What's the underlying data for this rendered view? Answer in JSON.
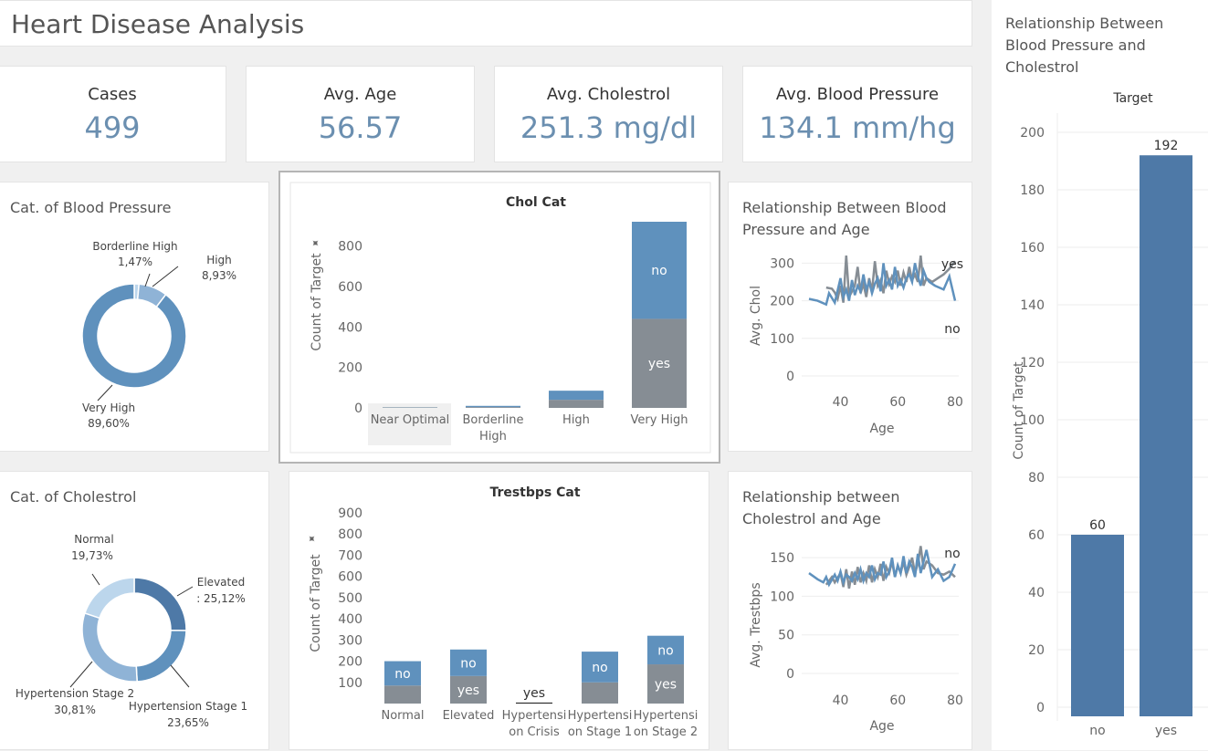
{
  "page": {
    "title": "Heart Disease Analysis"
  },
  "kpis": [
    {
      "label": "Cases",
      "value": "499"
    },
    {
      "label": "Avg. Age",
      "value": "56.57"
    },
    {
      "label": "Avg. Cholestrol",
      "value": "251.3 mg/dl"
    },
    {
      "label": "Avg. Blood Pressure",
      "value": "134.1 mm/hg"
    }
  ],
  "colors": {
    "dark_blue": "#4e79a7",
    "mid_blue": "#5f91bd",
    "light_blue": "#8fb3d6",
    "pale_blue": "#bcd6ec",
    "gray": "#868d94",
    "grid": "#eeeeee"
  },
  "chart_data": [
    {
      "id": "bp_donut",
      "type": "pie",
      "title": "Cat. of Blood Pressure",
      "slices": [
        {
          "name": "Borderline High",
          "label": "1,47%",
          "value": 1.47
        },
        {
          "name": "High",
          "label": "8,93%",
          "value": 8.93
        },
        {
          "name": "Very High",
          "label": "89,60%",
          "value": 89.6
        }
      ]
    },
    {
      "id": "chol_donut",
      "type": "pie",
      "title": "Cat. of Cholestrol",
      "slices": [
        {
          "name": "Elevated",
          "label": ": 25,12%",
          "value": 25.12
        },
        {
          "name": "Hypertension Stage 1",
          "label": "23,65%",
          "value": 23.65
        },
        {
          "name": "Hypertension Stage 2",
          "label": "30,81%",
          "value": 30.81
        },
        {
          "name": "Normal",
          "label": "19,73%",
          "value": 19.73
        }
      ]
    },
    {
      "id": "chol_cat",
      "type": "bar",
      "stacked": true,
      "title": "Chol Cat",
      "ylabel": "Count of Target",
      "yticks": [
        0,
        200,
        400,
        600,
        800
      ],
      "ylim": [
        0,
        920
      ],
      "categories": [
        "Near Optimal",
        "Borderline High",
        "High",
        "Very High"
      ],
      "category_lines": [
        [
          "Near Optimal"
        ],
        [
          "Borderline",
          "High"
        ],
        [
          "High"
        ],
        [
          "Very High"
        ]
      ],
      "series": [
        {
          "name": "yes",
          "values": [
            2,
            4,
            40,
            440
          ]
        },
        {
          "name": "no",
          "values": [
            1,
            6,
            45,
            480
          ]
        }
      ]
    },
    {
      "id": "trestbps_cat",
      "type": "bar",
      "stacked": true,
      "title": "Trestbps Cat",
      "ylabel": "Count of Target",
      "yticks": [
        100,
        200,
        300,
        400,
        500,
        600,
        700,
        800,
        900
      ],
      "ylim": [
        0,
        900
      ],
      "categories": [
        "Normal",
        "Elevated",
        "Hypertension Crisis",
        "Hypertension Stage 1",
        "Hypertension Stage 2"
      ],
      "category_lines": [
        [
          "Normal"
        ],
        [
          "Elevated"
        ],
        [
          "Hypertensi",
          "on Crisis"
        ],
        [
          "Hypertensi",
          "on Stage 1"
        ],
        [
          "Hypertensi",
          "on Stage 2"
        ]
      ],
      "series": [
        {
          "name": "yes",
          "values": [
            85,
            130,
            3,
            100,
            185
          ]
        },
        {
          "name": "no",
          "values": [
            115,
            125,
            0,
            145,
            135
          ]
        }
      ]
    },
    {
      "id": "bp_age",
      "type": "line",
      "title": "Relationship Between Blood Pressure and Age",
      "xlabel": "Age",
      "ylabel": "Avg. Chol",
      "xticks": [
        40,
        60,
        80
      ],
      "yticks": [
        0,
        100,
        200,
        300
      ],
      "xlim": [
        29,
        80
      ],
      "ylim": [
        0,
        330
      ],
      "series": [
        {
          "name": "yes",
          "points": [
            [
              35,
              235
            ],
            [
              37,
              232
            ],
            [
              38,
              222
            ],
            [
              39,
              205
            ],
            [
              40,
              240
            ],
            [
              41,
              195
            ],
            [
              42,
              320
            ],
            [
              43,
              210
            ],
            [
              44,
              225
            ],
            [
              45,
              240
            ],
            [
              46,
              290
            ],
            [
              47,
              220
            ],
            [
              48,
              245
            ],
            [
              49,
              210
            ],
            [
              50,
              260
            ],
            [
              51,
              225
            ],
            [
              52,
              305
            ],
            [
              53,
              240
            ],
            [
              54,
              255
            ],
            [
              55,
              220
            ],
            [
              56,
              280
            ],
            [
              57,
              245
            ],
            [
              58,
              265
            ],
            [
              59,
              250
            ],
            [
              60,
              280
            ],
            [
              61,
              240
            ],
            [
              62,
              275
            ],
            [
              63,
              250
            ],
            [
              64,
              290
            ],
            [
              65,
              255
            ],
            [
              66,
              270
            ],
            [
              67,
              250
            ],
            [
              68,
              320
            ],
            [
              69,
              240
            ],
            [
              70,
              260
            ],
            [
              72,
              250
            ],
            [
              74,
              260
            ],
            [
              76,
              270
            ],
            [
              78,
              285
            ],
            [
              80,
              305
            ]
          ]
        },
        {
          "name": "no",
          "points": [
            [
              29,
              205
            ],
            [
              32,
              200
            ],
            [
              35,
              190
            ],
            [
              36,
              220
            ],
            [
              38,
              195
            ],
            [
              40,
              260
            ],
            [
              41,
              210
            ],
            [
              42,
              230
            ],
            [
              43,
              200
            ],
            [
              44,
              255
            ],
            [
              45,
              215
            ],
            [
              46,
              240
            ],
            [
              47,
              225
            ],
            [
              48,
              270
            ],
            [
              49,
              230
            ],
            [
              50,
              250
            ],
            [
              51,
              220
            ],
            [
              52,
              245
            ],
            [
              53,
              260
            ],
            [
              54,
              225
            ],
            [
              55,
              300
            ],
            [
              56,
              240
            ],
            [
              57,
              255
            ],
            [
              58,
              230
            ],
            [
              59,
              290
            ],
            [
              60,
              240
            ],
            [
              61,
              255
            ],
            [
              62,
              235
            ],
            [
              63,
              260
            ],
            [
              64,
              270
            ],
            [
              65,
              250
            ],
            [
              66,
              300
            ],
            [
              67,
              265
            ],
            [
              68,
              240
            ],
            [
              69,
              280
            ],
            [
              70,
              260
            ],
            [
              71,
              250
            ],
            [
              73,
              240
            ],
            [
              76,
              230
            ],
            [
              78,
              265
            ],
            [
              80,
              200
            ]
          ]
        }
      ]
    },
    {
      "id": "chol_age",
      "type": "line",
      "title": "Relationship between Cholestrol and Age",
      "xlabel": "Age",
      "ylabel": "Avg. Trestbps",
      "xticks": [
        40,
        60,
        80
      ],
      "yticks": [
        0,
        50,
        100,
        150
      ],
      "xlim": [
        29,
        80
      ],
      "ylim": [
        0,
        175
      ],
      "series": [
        {
          "name": "yes",
          "points": [
            [
              35,
              115
            ],
            [
              37,
              125
            ],
            [
              38,
              118
            ],
            [
              40,
              130
            ],
            [
              41,
              112
            ],
            [
              42,
              135
            ],
            [
              43,
              110
            ],
            [
              44,
              132
            ],
            [
              45,
              115
            ],
            [
              46,
              138
            ],
            [
              47,
              118
            ],
            [
              48,
              130
            ],
            [
              49,
              120
            ],
            [
              50,
              140
            ],
            [
              51,
              118
            ],
            [
              52,
              135
            ],
            [
              53,
              125
            ],
            [
              54,
              142
            ],
            [
              55,
              120
            ],
            [
              56,
              138
            ],
            [
              57,
              130
            ],
            [
              58,
              145
            ],
            [
              59,
              125
            ],
            [
              60,
              140
            ],
            [
              61,
              130
            ],
            [
              62,
              145
            ],
            [
              63,
              128
            ],
            [
              64,
              138
            ],
            [
              65,
              150
            ],
            [
              66,
              130
            ],
            [
              67,
              142
            ],
            [
              68,
              165
            ],
            [
              69,
              135
            ],
            [
              70,
              145
            ],
            [
              72,
              140
            ],
            [
              74,
              130
            ],
            [
              76,
              128
            ],
            [
              78,
              132
            ],
            [
              80,
              125
            ]
          ]
        },
        {
          "name": "no",
          "points": [
            [
              29,
              130
            ],
            [
              32,
              122
            ],
            [
              34,
              118
            ],
            [
              35,
              125
            ],
            [
              36,
              115
            ],
            [
              38,
              128
            ],
            [
              39,
              120
            ],
            [
              40,
              132
            ],
            [
              41,
              118
            ],
            [
              42,
              128
            ],
            [
              43,
              125
            ],
            [
              44,
              120
            ],
            [
              45,
              130
            ],
            [
              46,
              122
            ],
            [
              47,
              135
            ],
            [
              48,
              120
            ],
            [
              49,
              130
            ],
            [
              50,
              125
            ],
            [
              51,
              140
            ],
            [
              52,
              122
            ],
            [
              53,
              130
            ],
            [
              54,
              128
            ],
            [
              55,
              145
            ],
            [
              56,
              125
            ],
            [
              57,
              132
            ],
            [
              58,
              150
            ],
            [
              59,
              125
            ],
            [
              60,
              140
            ],
            [
              61,
              130
            ],
            [
              62,
              152
            ],
            [
              63,
              130
            ],
            [
              64,
              145
            ],
            [
              65,
              138
            ],
            [
              66,
              125
            ],
            [
              67,
              155
            ],
            [
              68,
              130
            ],
            [
              70,
              160
            ],
            [
              72,
              125
            ],
            [
              74,
              135
            ],
            [
              76,
              120
            ],
            [
              78,
              125
            ],
            [
              80,
              142
            ]
          ]
        }
      ]
    },
    {
      "id": "target_bar",
      "type": "bar",
      "title": "Relationship Between Blood Pressure and Cholestrol",
      "column_header": "Target",
      "ylabel": "Count of Target",
      "yticks": [
        0,
        20,
        40,
        60,
        80,
        100,
        120,
        140,
        160,
        180,
        200
      ],
      "ylim": [
        0,
        200
      ],
      "categories": [
        "no",
        "yes"
      ],
      "values": [
        60,
        192
      ]
    }
  ]
}
